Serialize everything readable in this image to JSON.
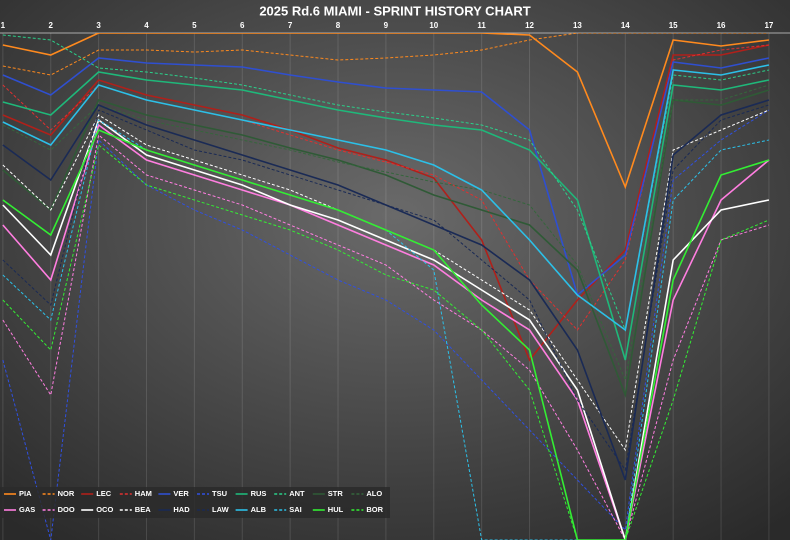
{
  "chart_data": {
    "type": "line",
    "title": "2025 Rd.6 MIAMI - SPRINT HISTORY CHART",
    "x": [
      1,
      2,
      3,
      4,
      5,
      6,
      7,
      8,
      9,
      10,
      11,
      12,
      13,
      14,
      15,
      16,
      17
    ],
    "xlim": [
      0.94,
      17.44
    ],
    "xticks": [
      1,
      2,
      3,
      4,
      5,
      6,
      7,
      8,
      9,
      10,
      11,
      12,
      13,
      14,
      15,
      16,
      17
    ],
    "ylim": [
      507,
      0
    ],
    "grid": true,
    "legend": "bottom-left",
    "series": [
      {
        "name": "PIA",
        "color": "#ff8a1e",
        "style": "solid",
        "values": [
          12,
          22,
          0,
          0,
          0,
          0,
          0,
          0,
          0,
          0,
          0,
          2,
          39,
          154,
          7,
          13,
          7
        ]
      },
      {
        "name": "NOR",
        "color": "#ff8a1e",
        "style": "dashed",
        "values": [
          33,
          42,
          17,
          17,
          19,
          17,
          22,
          27,
          25,
          22,
          17,
          7,
          0,
          0,
          0,
          0,
          0
        ]
      },
      {
        "name": "LEC",
        "color": "#b0201a",
        "style": "solid",
        "values": [
          82,
          102,
          47,
          62,
          72,
          82,
          97,
          115,
          127,
          145,
          207,
          327,
          267,
          217,
          22,
          22,
          12
        ]
      },
      {
        "name": "HAM",
        "color": "#e03030",
        "style": "dashed",
        "values": [
          52,
          97,
          52,
          67,
          77,
          87,
          102,
          117,
          129,
          142,
          167,
          247,
          297,
          227,
          27,
          17,
          12
        ]
      },
      {
        "name": "VER",
        "color": "#2f4fd0",
        "style": "solid",
        "values": [
          42,
          62,
          25,
          30,
          32,
          34,
          42,
          49,
          55,
          57,
          59,
          97,
          262,
          222,
          29,
          35,
          25
        ]
      },
      {
        "name": "TSU",
        "color": "#3050e0",
        "style": "dashed",
        "values": [
          327,
          507,
          107,
          152,
          177,
          197,
          222,
          247,
          267,
          297,
          347,
          397,
          447,
          497,
          147,
          107,
          77
        ]
      },
      {
        "name": "RUS",
        "color": "#1fb87a",
        "style": "solid",
        "values": [
          69,
          82,
          39,
          47,
          52,
          57,
          67,
          77,
          85,
          92,
          97,
          117,
          167,
          327,
          52,
          57,
          47
        ]
      },
      {
        "name": "ANT",
        "color": "#2bd08a",
        "style": "dashed",
        "values": [
          2,
          7,
          35,
          39,
          45,
          52,
          62,
          72,
          79,
          85,
          92,
          107,
          177,
          297,
          42,
          47,
          37
        ]
      },
      {
        "name": "STR",
        "color": "#2f5a36",
        "style": "solid",
        "values": [
          137,
          177,
          67,
          82,
          92,
          102,
          115,
          127,
          142,
          162,
          177,
          192,
          237,
          362,
          67,
          72,
          57
        ]
      },
      {
        "name": "ALO",
        "color": "#35663c",
        "style": "dashed",
        "values": [
          92,
          117,
          72,
          87,
          97,
          107,
          117,
          129,
          139,
          149,
          157,
          172,
          232,
          347,
          67,
          67,
          52
        ]
      },
      {
        "name": "GAS",
        "color": "#ff7ee0",
        "style": "solid",
        "values": [
          192,
          247,
          92,
          127,
          142,
          157,
          172,
          192,
          212,
          232,
          267,
          297,
          367,
          507,
          267,
          167,
          127
        ]
      },
      {
        "name": "DOO",
        "color": "#ff7ee0",
        "style": "dashed",
        "values": [
          287,
          362,
          102,
          142,
          157,
          172,
          192,
          212,
          232,
          267,
          297,
          337,
          417,
          507,
          327,
          207,
          192
        ]
      },
      {
        "name": "OCO",
        "color": "#ffffff",
        "style": "solid",
        "values": [
          172,
          222,
          87,
          122,
          137,
          152,
          172,
          187,
          207,
          227,
          257,
          287,
          357,
          507,
          227,
          177,
          167
        ]
      },
      {
        "name": "BEA",
        "color": "#ffffff",
        "style": "dashed",
        "values": [
          132,
          177,
          82,
          112,
          127,
          142,
          157,
          177,
          197,
          217,
          247,
          277,
          347,
          417,
          117,
          97,
          77
        ]
      },
      {
        "name": "HAD",
        "color": "#1a2a55",
        "style": "solid",
        "values": [
          112,
          147,
          72,
          92,
          107,
          122,
          137,
          152,
          172,
          192,
          212,
          247,
          317,
          447,
          122,
          82,
          67
        ]
      },
      {
        "name": "LAW",
        "color": "#1a2a55",
        "style": "dashed",
        "values": [
          227,
          272,
          77,
          97,
          117,
          127,
          142,
          157,
          172,
          187,
          227,
          267,
          367,
          437,
          137,
          87,
          72
        ]
      },
      {
        "name": "ALB",
        "color": "#2cc0e8",
        "style": "solid",
        "values": [
          89,
          112,
          52,
          67,
          77,
          87,
          97,
          107,
          117,
          132,
          157,
          207,
          262,
          297,
          37,
          42,
          32
        ]
      },
      {
        "name": "SAI",
        "color": "#2cc0e8",
        "style": "dashed",
        "values": [
          242,
          287,
          87,
          117,
          132,
          147,
          162,
          177,
          197,
          237,
          507,
          507,
          507,
          507,
          167,
          117,
          107
        ]
      },
      {
        "name": "HUL",
        "color": "#33ee33",
        "style": "solid",
        "values": [
          167,
          202,
          97,
          117,
          132,
          147,
          162,
          177,
          197,
          217,
          272,
          317,
          507,
          507,
          247,
          142,
          127
        ]
      },
      {
        "name": "BOR",
        "color": "#33ee33",
        "style": "dashed",
        "values": [
          267,
          317,
          112,
          152,
          167,
          182,
          197,
          217,
          242,
          257,
          297,
          357,
          507,
          507,
          367,
          207,
          187
        ]
      }
    ]
  }
}
